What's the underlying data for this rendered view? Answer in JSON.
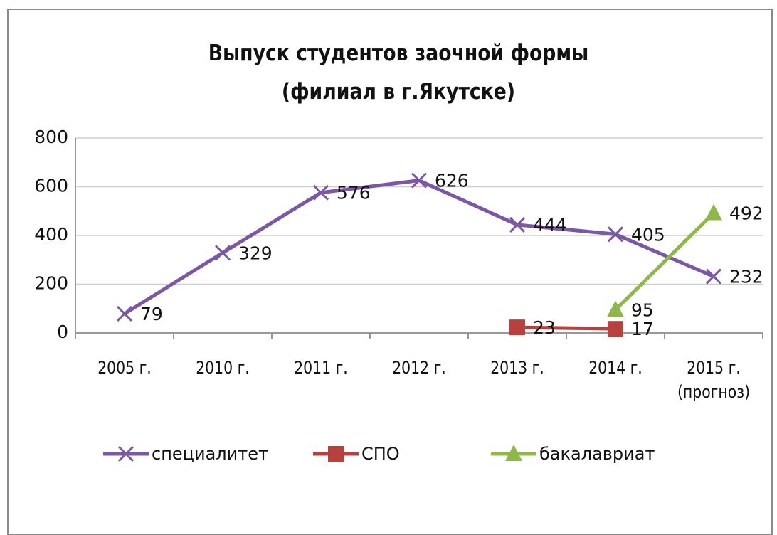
{
  "chart_data": {
    "type": "line",
    "title": "Выпуск студентов заочной формы (филиал в г.Якутске)",
    "categories": [
      "2005 г.",
      "2010 г.",
      "2011 г.",
      "2012 г.",
      "2013 г.",
      "2014 г.",
      "2015 г. (прогноз)"
    ],
    "series": [
      {
        "name": "специалитет",
        "color": "#7b58a6",
        "marker": "x",
        "values": [
          79,
          329,
          576,
          626,
          444,
          405,
          232
        ]
      },
      {
        "name": "СПО",
        "color": "#b7413d",
        "marker": "square",
        "values": [
          null,
          null,
          null,
          null,
          23,
          17,
          null
        ]
      },
      {
        "name": "бакалавриат",
        "color": "#8fb84a",
        "marker": "triangle",
        "values": [
          null,
          null,
          null,
          null,
          null,
          95,
          492
        ]
      }
    ],
    "ylim": [
      0,
      800
    ],
    "yticks": [
      0,
      200,
      400,
      600,
      800
    ],
    "grid": true,
    "legend": "bottom"
  }
}
